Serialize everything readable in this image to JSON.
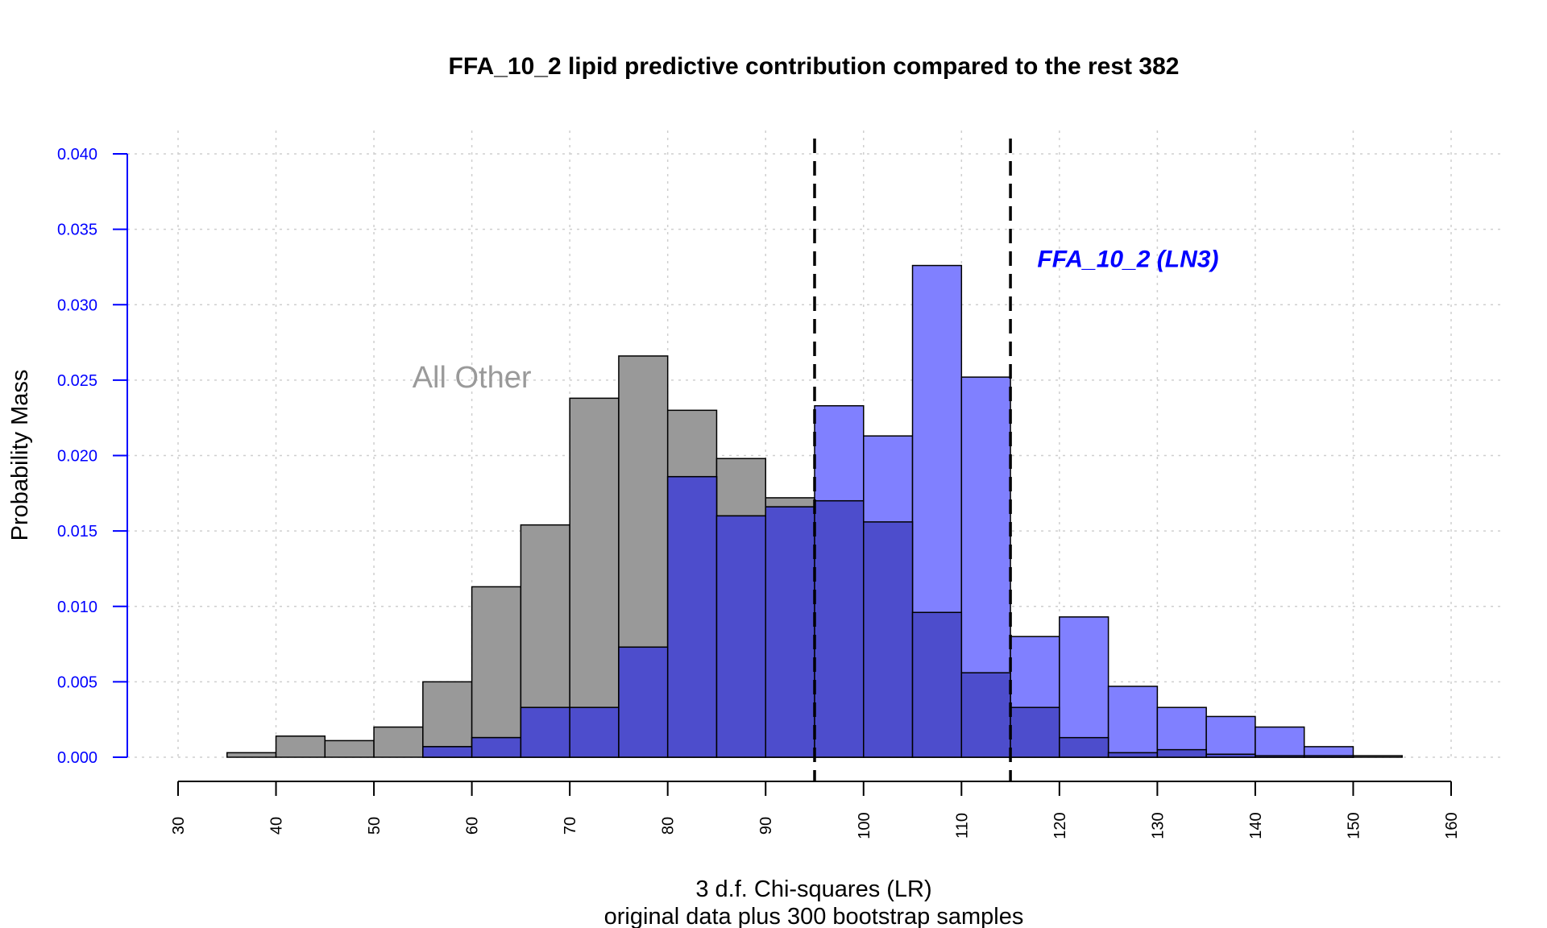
{
  "chart_data": {
    "type": "bar",
    "title": "FFA_10_2 lipid predictive contribution compared to the rest 382",
    "xlabel": "3 d.f. Chi-squares (LR)",
    "xlabel2": "original data plus 300 bootstrap samples",
    "ylabel": "Probability Mass",
    "xlim": [
      30,
      160
    ],
    "ylim": [
      0,
      0.04
    ],
    "x_ticks": [
      "30",
      "40",
      "50",
      "60",
      "70",
      "80",
      "90",
      "100",
      "110",
      "120",
      "130",
      "140",
      "150",
      "160"
    ],
    "y_ticks": [
      "0.000",
      "0.005",
      "0.010",
      "0.015",
      "0.020",
      "0.025",
      "0.030",
      "0.035",
      "0.040"
    ],
    "grid": true,
    "bin_width": 5,
    "vlines": [
      95,
      115
    ],
    "colors": {
      "gray": "#999999",
      "blue": "#8080ff",
      "overlap": "#4d4dcc",
      "yaxis": "#0000ff"
    },
    "annotations": [
      {
        "text": "All Other",
        "x": 60,
        "y": 0.0245
      },
      {
        "text": "FFA_10_2 (LN3)",
        "x": 127,
        "y": 0.0325
      }
    ],
    "series": [
      {
        "name": "All Other",
        "bin_starts": [
          35,
          40,
          45,
          50,
          55,
          60,
          65,
          70,
          75,
          80,
          85,
          90,
          95,
          100,
          105,
          110,
          115,
          120,
          125,
          130,
          135,
          140,
          145,
          150
        ],
        "values": [
          0.0003,
          0.0014,
          0.0011,
          0.002,
          0.005,
          0.0113,
          0.0154,
          0.0238,
          0.0266,
          0.023,
          0.0198,
          0.0172,
          0.017,
          0.0156,
          0.0096,
          0.0056,
          0.0033,
          0.0013,
          0.0003,
          0.0005,
          0.0002,
          0.0001,
          0.0001,
          0.0001
        ]
      },
      {
        "name": "FFA_10_2 (LN3)",
        "bin_starts": [
          55,
          60,
          65,
          70,
          75,
          80,
          85,
          90,
          95,
          100,
          105,
          110,
          115,
          120,
          125,
          130,
          135,
          140,
          145
        ],
        "values": [
          0.0007,
          0.0013,
          0.0033,
          0.0033,
          0.0073,
          0.0186,
          0.016,
          0.0166,
          0.0233,
          0.0213,
          0.0326,
          0.0252,
          0.008,
          0.0093,
          0.0047,
          0.0033,
          0.0027,
          0.002,
          0.0007
        ]
      }
    ]
  }
}
